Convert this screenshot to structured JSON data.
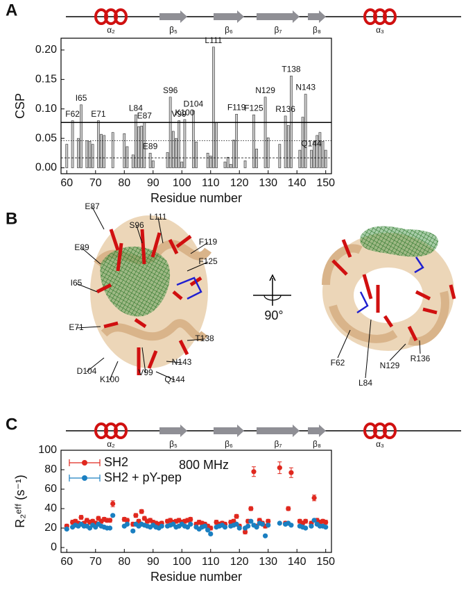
{
  "panel_labels": [
    "A",
    "B",
    "C"
  ],
  "secondary_structure": [
    "α₂",
    "β₅",
    "β₆",
    "β₇",
    "β₈",
    "α₃"
  ],
  "structure": {
    "rotation": "90°",
    "left_labels": [
      "E87",
      "S96",
      "L111",
      "F119",
      "F125",
      "E89",
      "I65",
      "E71",
      "T138",
      "N143",
      "Q144",
      "D104",
      "K100",
      "V99"
    ],
    "right_labels": [
      "F62",
      "L84",
      "N129",
      "R136"
    ]
  },
  "chart_data": [
    {
      "type": "bar",
      "x_label": "Residue number",
      "y_label": "CSP",
      "color": "#c8c8c8",
      "x": [
        60,
        62,
        64,
        65,
        67,
        68,
        69,
        71,
        72,
        73,
        76,
        80,
        81,
        83,
        84,
        85,
        86,
        87,
        89,
        90,
        95,
        96,
        97,
        98,
        99,
        100,
        101,
        104,
        105,
        109,
        110,
        111,
        112,
        115,
        116,
        117,
        118,
        119,
        122,
        125,
        126,
        129,
        130,
        134,
        136,
        137,
        138,
        141,
        142,
        143,
        145,
        146,
        147,
        148,
        149,
        150
      ],
      "values": [
        0.04,
        0.08,
        0.05,
        0.107,
        0.046,
        0.045,
        0.04,
        0.08,
        0.057,
        0.055,
        0.06,
        0.058,
        0.036,
        0.022,
        0.09,
        0.07,
        0.071,
        0.077,
        0.025,
        0.012,
        0.026,
        0.12,
        0.062,
        0.05,
        0.08,
        0.01,
        0.082,
        0.097,
        0.044,
        0.025,
        0.02,
        0.205,
        0.077,
        0.01,
        0.018,
        0.006,
        0.047,
        0.091,
        0.012,
        0.09,
        0.032,
        0.12,
        0.051,
        0.04,
        0.088,
        0.072,
        0.156,
        0.03,
        0.086,
        0.125,
        0.03,
        0.045,
        0.055,
        0.06,
        0.045,
        0.03
      ],
      "bar_labels": [
        {
          "x": 62,
          "label": "F62"
        },
        {
          "x": 65,
          "label": "I65"
        },
        {
          "x": 71,
          "label": "E71"
        },
        {
          "x": 84,
          "label": "L84"
        },
        {
          "x": 87,
          "label": "E87"
        },
        {
          "x": 89,
          "label": "E89"
        },
        {
          "x": 96,
          "label": "S96"
        },
        {
          "x": 101,
          "label": "K100"
        },
        {
          "x": 99,
          "label": "V99"
        },
        {
          "x": 104,
          "label": "D104"
        },
        {
          "x": 111,
          "label": "L111"
        },
        {
          "x": 119,
          "label": "F119"
        },
        {
          "x": 125,
          "label": "F125"
        },
        {
          "x": 129,
          "label": "N129"
        },
        {
          "x": 136,
          "label": "R136"
        },
        {
          "x": 138,
          "label": "T138"
        },
        {
          "x": 143,
          "label": "N143"
        },
        {
          "x": 145,
          "label": "Q144"
        }
      ],
      "reference_lines": [
        {
          "value": 0.077,
          "style": "solid"
        },
        {
          "value": 0.046,
          "style": "dotted"
        },
        {
          "value": 0.017,
          "style": "dashed"
        }
      ],
      "xlim": [
        58,
        152
      ],
      "xticks": [
        60,
        70,
        80,
        90,
        100,
        110,
        120,
        130,
        140,
        150
      ],
      "ylim": [
        -0.01,
        0.22
      ],
      "yticks": [
        {
          "value": 0,
          "label": "0.00"
        },
        {
          "value": 0.05,
          "label": "0.05"
        },
        {
          "value": 0.1,
          "label": "0.10"
        },
        {
          "value": 0.15,
          "label": "0.15"
        },
        {
          "value": 0.2,
          "label": "0.20"
        }
      ]
    },
    {
      "type": "scatter",
      "x_label": "Residue number",
      "y_label": "R₂ᵉᶠᶠ (s⁻¹)",
      "annotation": "800 MHz",
      "legend": "upper left",
      "x": [
        60,
        61,
        62,
        63,
        64,
        65,
        66,
        67,
        68,
        69,
        70,
        71,
        72,
        73,
        74,
        75,
        76,
        77,
        78,
        79,
        80,
        81,
        82,
        83,
        84,
        85,
        86,
        87,
        88,
        89,
        90,
        91,
        92,
        93,
        94,
        95,
        96,
        97,
        98,
        99,
        100,
        101,
        102,
        103,
        104,
        105,
        106,
        107,
        108,
        109,
        110,
        111,
        112,
        113,
        114,
        115,
        116,
        117,
        118,
        119,
        120,
        121,
        122,
        123,
        124,
        125,
        126,
        127,
        128,
        129,
        130,
        131,
        132,
        133,
        134,
        135,
        136,
        137,
        138,
        139,
        140,
        141,
        142,
        143,
        144,
        145,
        146,
        147,
        148,
        149,
        150
      ],
      "series": [
        {
          "name": "SH2",
          "color": "#e0281e",
          "values": [
            22,
            null,
            26,
            27,
            25,
            31,
            25,
            28,
            26,
            27,
            25,
            30,
            27,
            29,
            28,
            28,
            45,
            null,
            null,
            null,
            29,
            28,
            null,
            24,
            33,
            27,
            37,
            30,
            27,
            28,
            26,
            25,
            24,
            25,
            null,
            27,
            28,
            26,
            27,
            28,
            26,
            27,
            28,
            29,
            null,
            24,
            26,
            25,
            24,
            22,
            20,
            null,
            26,
            24,
            25,
            24,
            null,
            26,
            27,
            32,
            22,
            null,
            16,
            27,
            40,
            78,
            22,
            28,
            25,
            22,
            27,
            null,
            null,
            null,
            82,
            null,
            25,
            40,
            77,
            null,
            null,
            27,
            25,
            27,
            null,
            25,
            51,
            28,
            26,
            27,
            26
          ],
          "errors": [
            2,
            null,
            2,
            2,
            2,
            2,
            2,
            2,
            2,
            2,
            2,
            2,
            2,
            2,
            2,
            2,
            3,
            null,
            null,
            null,
            2,
            2,
            null,
            2,
            2,
            2,
            2,
            2,
            2,
            2,
            2,
            2,
            2,
            2,
            null,
            2,
            2,
            2,
            2,
            2,
            2,
            2,
            2,
            2,
            null,
            2,
            2,
            2,
            2,
            2,
            2,
            null,
            2,
            2,
            2,
            2,
            null,
            2,
            2,
            2,
            2,
            null,
            2,
            2,
            2,
            5,
            2,
            2,
            2,
            2,
            2,
            null,
            null,
            null,
            6,
            null,
            2,
            2,
            5,
            null,
            null,
            2,
            2,
            2,
            null,
            2,
            3,
            2,
            2,
            2,
            2
          ]
        },
        {
          "name": "SH2 + pY-pep",
          "color": "#1a7fc1",
          "values": [
            19,
            null,
            21,
            23,
            22,
            24,
            22,
            22,
            20,
            23,
            21,
            24,
            22,
            21,
            20,
            20,
            33,
            null,
            null,
            null,
            22,
            24,
            null,
            17,
            24,
            22,
            24,
            23,
            22,
            21,
            23,
            21,
            20,
            22,
            null,
            22,
            23,
            24,
            21,
            22,
            24,
            22,
            21,
            24,
            null,
            21,
            19,
            21,
            22,
            18,
            14,
            null,
            21,
            22,
            23,
            21,
            null,
            22,
            23,
            24,
            20,
            null,
            20,
            22,
            27,
            23,
            21,
            25,
            24,
            12,
            23,
            null,
            null,
            null,
            25,
            null,
            24,
            25,
            23,
            null,
            null,
            22,
            21,
            20,
            null,
            22,
            28,
            24,
            22,
            22,
            21
          ],
          "errors": [
            1,
            null,
            1,
            1,
            1,
            1,
            1,
            1,
            1,
            1,
            1,
            1,
            1,
            1,
            1,
            1,
            1,
            null,
            null,
            null,
            1,
            1,
            null,
            1,
            1,
            1,
            1,
            1,
            1,
            1,
            1,
            1,
            1,
            1,
            null,
            1,
            1,
            1,
            1,
            1,
            1,
            1,
            1,
            1,
            null,
            1,
            1,
            1,
            1,
            1,
            1,
            null,
            1,
            1,
            1,
            1,
            null,
            1,
            1,
            1,
            1,
            null,
            1,
            1,
            1,
            1,
            1,
            1,
            1,
            1,
            1,
            null,
            null,
            null,
            1,
            null,
            1,
            1,
            1,
            null,
            null,
            1,
            1,
            1,
            null,
            1,
            1,
            1,
            1,
            1,
            1
          ]
        }
      ],
      "xlim": [
        58,
        152
      ],
      "xticks": [
        60,
        70,
        80,
        90,
        100,
        110,
        120,
        130,
        140,
        150
      ],
      "ylim": [
        -5,
        100
      ],
      "yticks": [
        0,
        20,
        40,
        60,
        80,
        100
      ]
    }
  ]
}
